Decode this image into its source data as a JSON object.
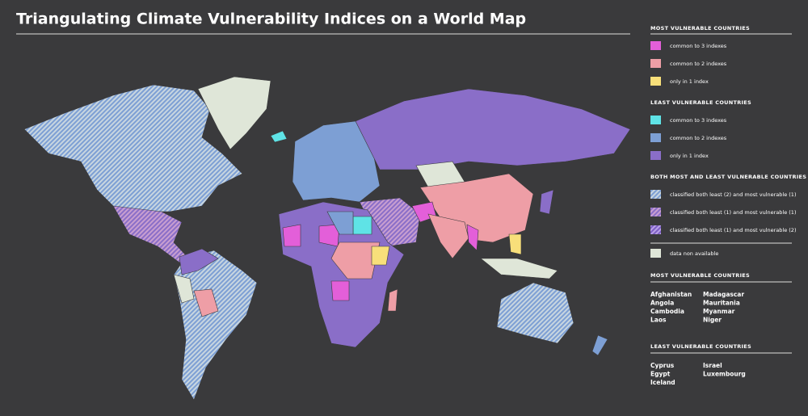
{
  "title": "Triangulating Climate Vulnerability Indices on a World Map",
  "legend": [
    {
      "heading": "MOST VULNERABLE COUNTRIES",
      "items": [
        {
          "label": "common to 3 indexes",
          "color": "#e35fd9"
        },
        {
          "label": "common to 2 indexes",
          "color": "#ee9ea6"
        },
        {
          "label": "only in 1 index",
          "color": "#f8df7a"
        }
      ]
    },
    {
      "heading": "LEAST VULNERABLE COUNTRIES",
      "items": [
        {
          "label": "common to 3 indexes",
          "color": "#5fe3e6"
        },
        {
          "label": "common to 2 indexes",
          "color": "#7d9fd4"
        },
        {
          "label": "only in 1 index",
          "color": "#8a6ec8"
        }
      ]
    },
    {
      "heading": "BOTH MOST AND LEAST VULNERABLE COUNTRIES",
      "items": [
        {
          "label": "classified both least (2) and most vulnerable (1)",
          "colors": [
            "#c8d6e0",
            "#7d9fd4"
          ]
        },
        {
          "label": "classified both least (1) and most vulnerable (1)",
          "colors": [
            "#c99fd0",
            "#8a6ec8"
          ]
        },
        {
          "label": "classified both least (1) and most vulnerable (2)",
          "colors": [
            "#b9a1e8",
            "#7d5fc4"
          ]
        }
      ]
    }
  ],
  "no_data": {
    "label": "data non available",
    "color": "#dfe6d8"
  },
  "most_vulnerable": {
    "heading": "MOST VULNERABLE COUNTRIES",
    "columns": [
      [
        "Afghanistan",
        "Angola",
        "Cambodia",
        "Laos"
      ],
      [
        "Madagascar",
        "Mauritania",
        "Myanmar",
        "Niger"
      ]
    ]
  },
  "least_vulnerable": {
    "heading": "LEAST VULNERABLE COUNTRIES",
    "columns": [
      [
        "Cyprus",
        "Egypt",
        "Iceland"
      ],
      [
        "Israel",
        "Luxembourg"
      ]
    ]
  }
}
